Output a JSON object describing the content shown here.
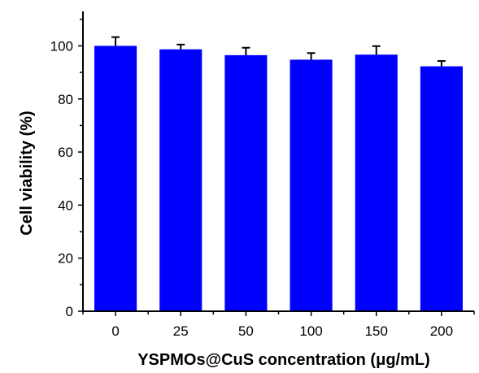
{
  "chart_data": {
    "type": "bar",
    "title": "",
    "xlabel": "YSPMOs@CuS concentration (μg/mL)",
    "ylabel": "Cell viability (%)",
    "categories": [
      "0",
      "25",
      "50",
      "100",
      "150",
      "200"
    ],
    "values": [
      100.0,
      98.7,
      96.5,
      94.8,
      96.7,
      92.3
    ],
    "errors": [
      3.3,
      1.8,
      2.8,
      2.5,
      3.2,
      2.0
    ],
    "ylim": [
      0,
      113
    ],
    "yticks": [
      0,
      20,
      40,
      60,
      80,
      100
    ],
    "ytick_labels": [
      "0",
      "20",
      "40",
      "60",
      "80",
      "100"
    ],
    "grid": false,
    "legend": "none",
    "bar_color": "#0000ff",
    "axis_color": "#000000"
  }
}
